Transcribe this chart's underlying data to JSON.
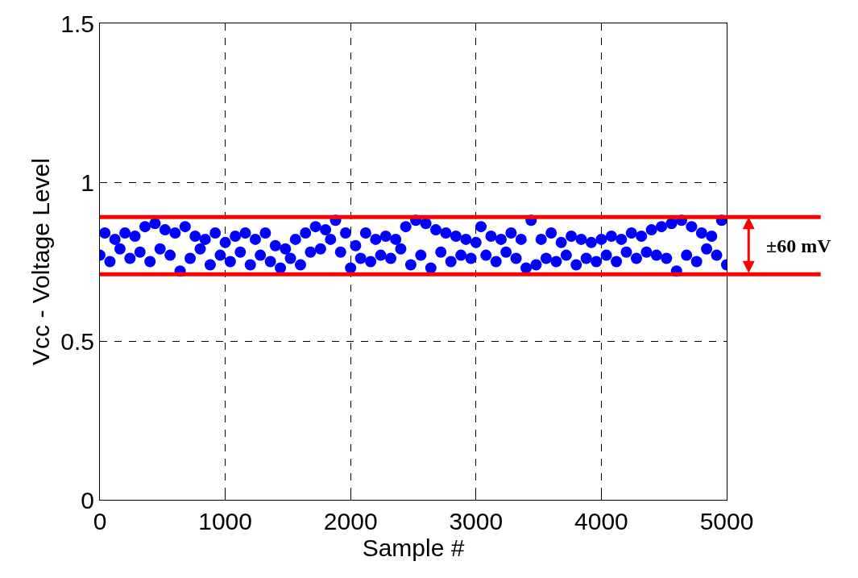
{
  "chart_data": {
    "type": "scatter",
    "xlabel": "Sample #",
    "ylabel": "Vcc - Voltage Level",
    "x": [
      0,
      40,
      80,
      120,
      160,
      200,
      240,
      280,
      320,
      360,
      400,
      440,
      480,
      520,
      560,
      600,
      640,
      680,
      720,
      760,
      800,
      840,
      880,
      920,
      960,
      1000,
      1040,
      1080,
      1120,
      1160,
      1200,
      1240,
      1280,
      1320,
      1360,
      1400,
      1440,
      1480,
      1520,
      1560,
      1600,
      1640,
      1680,
      1720,
      1760,
      1800,
      1840,
      1880,
      1920,
      1960,
      2000,
      2040,
      2080,
      2120,
      2160,
      2200,
      2240,
      2280,
      2320,
      2360,
      2400,
      2440,
      2480,
      2520,
      2560,
      2600,
      2640,
      2680,
      2720,
      2760,
      2800,
      2840,
      2880,
      2920,
      2960,
      3000,
      3040,
      3080,
      3120,
      3160,
      3200,
      3240,
      3280,
      3320,
      3360,
      3400,
      3440,
      3480,
      3520,
      3560,
      3600,
      3640,
      3680,
      3720,
      3760,
      3800,
      3840,
      3880,
      3920,
      3960,
      4000,
      4040,
      4080,
      4120,
      4160,
      4200,
      4240,
      4280,
      4320,
      4360,
      4400,
      4440,
      4480,
      4520,
      4560,
      4600,
      4640,
      4680,
      4720,
      4760,
      4800,
      4840,
      4880,
      4920,
      4960,
      5000
    ],
    "series": [
      {
        "color": "#0000ff",
        "values": [
          0.77,
          0.84,
          0.75,
          0.82,
          0.79,
          0.84,
          0.76,
          0.83,
          0.78,
          0.86,
          0.75,
          0.87,
          0.79,
          0.85,
          0.77,
          0.84,
          0.72,
          0.86,
          0.76,
          0.83,
          0.79,
          0.82,
          0.74,
          0.84,
          0.77,
          0.81,
          0.75,
          0.83,
          0.78,
          0.84,
          0.74,
          0.82,
          0.77,
          0.84,
          0.75,
          0.8,
          0.73,
          0.79,
          0.76,
          0.82,
          0.74,
          0.84,
          0.78,
          0.86,
          0.79,
          0.85,
          0.82,
          0.88,
          0.78,
          0.84,
          0.73,
          0.8,
          0.76,
          0.84,
          0.75,
          0.82,
          0.77,
          0.83,
          0.76,
          0.82,
          0.79,
          0.86,
          0.74,
          0.88,
          0.77,
          0.87,
          0.73,
          0.85,
          0.78,
          0.84,
          0.75,
          0.83,
          0.77,
          0.82,
          0.76,
          0.81,
          0.86,
          0.77,
          0.83,
          0.75,
          0.82,
          0.78,
          0.84,
          0.76,
          0.82,
          0.73,
          0.88,
          0.74,
          0.82,
          0.76,
          0.84,
          0.75,
          0.81,
          0.77,
          0.83,
          0.74,
          0.82,
          0.76,
          0.81,
          0.75,
          0.82,
          0.77,
          0.83,
          0.75,
          0.82,
          0.78,
          0.84,
          0.76,
          0.83,
          0.78,
          0.85,
          0.77,
          0.86,
          0.76,
          0.87,
          0.72,
          0.88,
          0.77,
          0.86,
          0.75,
          0.84,
          0.79,
          0.83,
          0.77,
          0.88,
          0.74
        ]
      }
    ],
    "marker": "circle",
    "xlim": [
      0,
      5000
    ],
    "xticks": [
      0,
      1000,
      2000,
      3000,
      4000,
      5000
    ],
    "ylim": [
      0,
      1.5
    ],
    "yticks": [
      0,
      0.5,
      1,
      1.5
    ],
    "grid": true,
    "line_style": "dashed",
    "ref_lines": [
      {
        "axis": "y",
        "value": 0.89,
        "color": "#ff0000"
      },
      {
        "axis": "y",
        "value": 0.71,
        "color": "#ff0000"
      }
    ],
    "annotations": [
      "±60 mV"
    ]
  }
}
